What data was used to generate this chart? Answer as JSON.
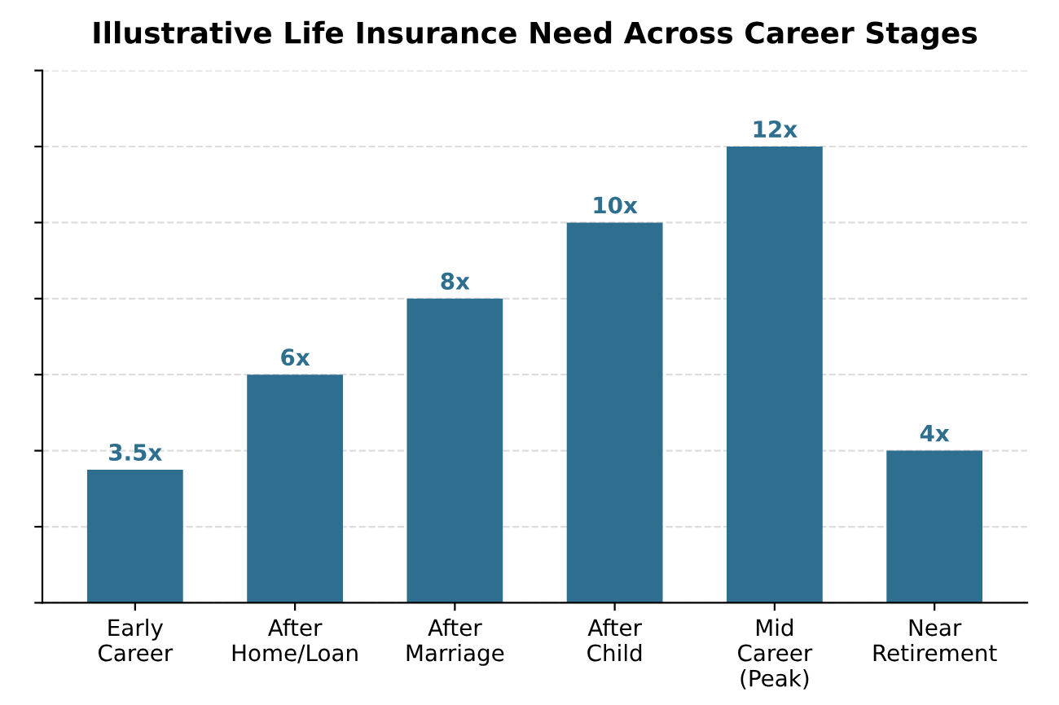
{
  "chart_data": {
    "type": "bar",
    "title": "Illustrative Life Insurance Need Across Career Stages",
    "categories": [
      "Early\nCareer",
      "After\nHome/Loan",
      "After\nMarriage",
      "After\nChild",
      "Mid\nCareer\n(Peak)",
      "Near\nRetirement"
    ],
    "values": [
      3.5,
      6,
      8,
      10,
      12,
      4
    ],
    "value_labels": [
      "3.5x",
      "6x",
      "8x",
      "10x",
      "12x",
      "4x"
    ],
    "color": "#2e6e8e",
    "ylim": [
      0,
      14
    ],
    "yticks": [
      {
        "value": 0,
        "label": null
      },
      {
        "value": 2,
        "label": null
      },
      {
        "value": 4,
        "label": null
      },
      {
        "value": 6,
        "label": null
      },
      {
        "value": 8,
        "label": null
      },
      {
        "value": 10,
        "label": null
      },
      {
        "value": 12,
        "label": null
      },
      {
        "value": 14,
        "label": null
      }
    ],
    "tick_labels": "x",
    "grid": "y"
  }
}
